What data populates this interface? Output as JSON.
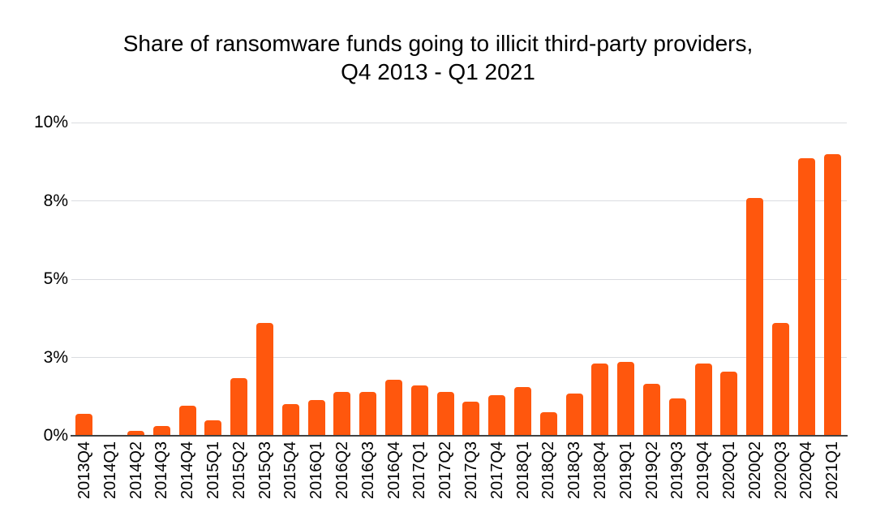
{
  "chart": {
    "title_line1": "Share of ransomware funds going to illicit third-party providers,",
    "title_line2": "Q4 2013 - Q1 2021"
  },
  "chart_data": {
    "type": "bar",
    "title": "Share of ransomware funds going to illicit third-party providers, Q4 2013 - Q1 2021",
    "xlabel": "",
    "ylabel": "",
    "unit": "%",
    "categories": [
      "2013Q4",
      "2014Q1",
      "2014Q2",
      "2014Q3",
      "2014Q4",
      "2015Q1",
      "2015Q2",
      "2015Q3",
      "2015Q4",
      "2016Q1",
      "2016Q2",
      "2016Q3",
      "2016Q4",
      "2017Q1",
      "2017Q2",
      "2017Q3",
      "2017Q4",
      "2018Q1",
      "2018Q2",
      "2018Q3",
      "2018Q4",
      "2019Q1",
      "2019Q2",
      "2019Q3",
      "2019Q4",
      "2020Q1",
      "2020Q2",
      "2020Q3",
      "2020Q4",
      "2021Q1"
    ],
    "values": [
      0.7,
      0,
      0.15,
      0.3,
      0.95,
      0.5,
      1.85,
      3.6,
      1.0,
      1.15,
      1.4,
      1.4,
      1.8,
      1.6,
      1.4,
      1.1,
      1.3,
      1.55,
      0.75,
      1.35,
      2.3,
      2.35,
      1.65,
      1.2,
      2.3,
      2.05,
      7.6,
      3.6,
      8.85,
      9.0
    ],
    "ylim": [
      0,
      10
    ],
    "y_ticks": [
      {
        "value": 0,
        "label": "0%"
      },
      {
        "value": 2.5,
        "label": "3%"
      },
      {
        "value": 5,
        "label": "5%"
      },
      {
        "value": 7.5,
        "label": "8%"
      },
      {
        "value": 10,
        "label": "10%"
      }
    ],
    "grid": true,
    "legend": "none",
    "colors": {
      "bar": "#FF570D",
      "gridline": "#DADCE0",
      "axis_line": "#424242",
      "text": "#000000",
      "background": "#FFFFFF"
    }
  }
}
